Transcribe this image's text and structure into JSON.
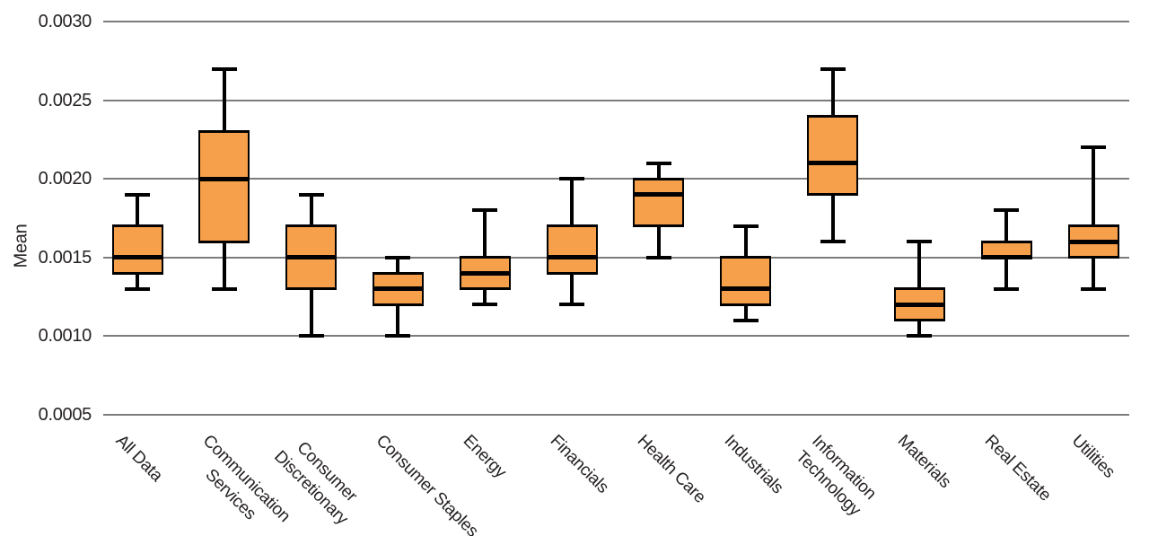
{
  "chart_data": {
    "type": "boxplot",
    "title": "",
    "xlabel": "",
    "ylabel": "Mean",
    "ylim": [
      0.0005,
      0.003
    ],
    "yticks": [
      0.003,
      0.0025,
      0.002,
      0.0015,
      0.001,
      0.0005
    ],
    "ytick_decimals": 4,
    "grid": true,
    "legend": null,
    "categories": [
      "All Data",
      "Communication Services",
      "Consumer Discretionary",
      "Consumer Staples",
      "Energy",
      "Financials",
      "Health Care",
      "Industrials",
      "Information Technology",
      "Materials",
      "Real Estate",
      "Utilities"
    ],
    "boxes": [
      {
        "label": "All Data",
        "display_label": "All Data",
        "whisker_low": 0.0013,
        "q1": 0.0014,
        "median": 0.0015,
        "q3": 0.0017,
        "whisker_high": 0.0019
      },
      {
        "label": "Communication Services",
        "display_label": "Communication\nServices",
        "whisker_low": 0.0013,
        "q1": 0.0016,
        "median": 0.002,
        "q3": 0.0023,
        "whisker_high": 0.0027
      },
      {
        "label": "Consumer Discretionary",
        "display_label": "Consumer\nDiscretionary",
        "whisker_low": 0.001,
        "q1": 0.0013,
        "median": 0.0015,
        "q3": 0.0017,
        "whisker_high": 0.0019
      },
      {
        "label": "Consumer Staples",
        "display_label": "Consumer Staples",
        "whisker_low": 0.001,
        "q1": 0.0012,
        "median": 0.0013,
        "q3": 0.0014,
        "whisker_high": 0.0015
      },
      {
        "label": "Energy",
        "display_label": "Energy",
        "whisker_low": 0.0012,
        "q1": 0.0013,
        "median": 0.0014,
        "q3": 0.0015,
        "whisker_high": 0.0018
      },
      {
        "label": "Financials",
        "display_label": "Financials",
        "whisker_low": 0.0012,
        "q1": 0.0014,
        "median": 0.0015,
        "q3": 0.0017,
        "whisker_high": 0.002
      },
      {
        "label": "Health Care",
        "display_label": "Health Care",
        "whisker_low": 0.0015,
        "q1": 0.0017,
        "median": 0.0019,
        "q3": 0.002,
        "whisker_high": 0.0021
      },
      {
        "label": "Industrials",
        "display_label": "Industrials",
        "whisker_low": 0.0011,
        "q1": 0.0012,
        "median": 0.0013,
        "q3": 0.0015,
        "whisker_high": 0.0017
      },
      {
        "label": "Information Technology",
        "display_label": "Information\nTechnology",
        "whisker_low": 0.0016,
        "q1": 0.0019,
        "median": 0.0021,
        "q3": 0.0024,
        "whisker_high": 0.0027
      },
      {
        "label": "Materials",
        "display_label": "Materials",
        "whisker_low": 0.001,
        "q1": 0.0011,
        "median": 0.0012,
        "q3": 0.0013,
        "whisker_high": 0.0016
      },
      {
        "label": "Real Estate",
        "display_label": "Real Estate",
        "whisker_low": 0.0013,
        "q1": 0.0015,
        "median": 0.0015,
        "q3": 0.0016,
        "whisker_high": 0.0018
      },
      {
        "label": "Utilities",
        "display_label": "Utilities",
        "whisker_low": 0.0013,
        "q1": 0.0015,
        "median": 0.0016,
        "q3": 0.0017,
        "whisker_high": 0.0022
      }
    ],
    "colors": {
      "box_fill": "#F7A04B",
      "line": "#000000",
      "grid": "#7C7C7C",
      "text": "#262223",
      "background": "#FFFFFF"
    }
  }
}
